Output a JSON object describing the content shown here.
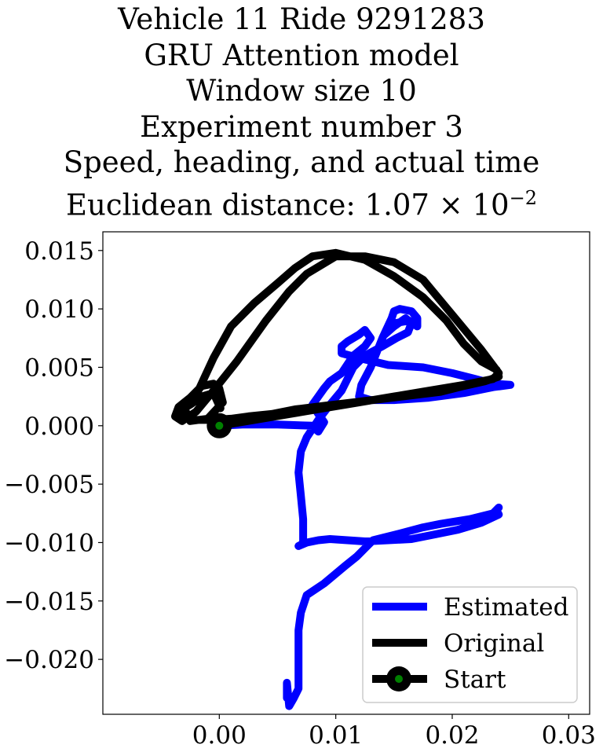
{
  "title_lines": [
    "Vehicle 11 Ride 9291283",
    "GRU Attention model",
    "Window size 10",
    "Experiment number 3",
    "Speed, heading, and actual time"
  ],
  "title_distance": {
    "prefix": "Euclidean distance: 1.07 × 10",
    "exponent": "−2"
  },
  "chart_data": {
    "type": "line",
    "title": "Vehicle 11 Ride 9291283 / GRU Attention model / Window size 10 / Experiment number 3 / Speed, heading, and actual time / Euclidean distance: 1.07 × 10^−2",
    "xlabel": "",
    "ylabel": "",
    "xlim": [
      -0.01,
      0.0318
    ],
    "ylim": [
      -0.0247,
      0.0166
    ],
    "x_ticks": [
      0.0,
      0.01,
      0.02,
      0.03
    ],
    "x_tick_labels": [
      "0.00",
      "0.01",
      "0.02",
      "0.03"
    ],
    "y_ticks": [
      0.015,
      0.01,
      0.005,
      0.0,
      -0.005,
      -0.01,
      -0.015,
      -0.02
    ],
    "y_tick_labels": [
      "0.015",
      "0.010",
      "0.005",
      "0.000",
      "−0.005",
      "−0.010",
      "−0.015",
      "−0.020"
    ],
    "grid": false,
    "legend_position": "lower right",
    "series": [
      {
        "name": "Estimated",
        "color": "#0000ff",
        "x": [
          0.0,
          0.002,
          0.005,
          0.008,
          0.0085,
          0.009,
          0.0085,
          0.008,
          0.0085,
          0.009,
          0.0095,
          0.0105,
          0.0115,
          0.0125,
          0.013,
          0.0125,
          0.012,
          0.011,
          0.0105,
          0.0105,
          0.012,
          0.0145,
          0.0175,
          0.02,
          0.022,
          0.0235,
          0.025,
          0.0235,
          0.021,
          0.018,
          0.015,
          0.013,
          0.012,
          0.0122,
          0.013,
          0.014,
          0.0148,
          0.015,
          0.0155,
          0.0165,
          0.017,
          0.017,
          0.0163,
          0.0152,
          0.0145,
          0.0142,
          0.015,
          0.016,
          0.0165,
          0.0162,
          0.0152,
          0.014,
          0.0125,
          0.0115,
          0.011,
          0.0105,
          0.0095,
          0.0085,
          0.0075,
          0.007,
          0.0068,
          0.007,
          0.0072,
          0.0072,
          0.007,
          0.0068,
          0.0075,
          0.0085,
          0.0095,
          0.011,
          0.0125,
          0.0145,
          0.0165,
          0.0185,
          0.0205,
          0.0225,
          0.024,
          0.0238,
          0.024,
          0.0235,
          0.0215,
          0.019,
          0.0175,
          0.0152,
          0.0132,
          0.0125,
          0.0118,
          0.0108,
          0.009,
          0.0075,
          0.007,
          0.0068,
          0.0068,
          0.0068,
          0.0068,
          0.0068,
          0.0064,
          0.006,
          0.0058,
          0.0058
        ],
        "y": [
          0.0,
          0.0001,
          0.0001,
          0.0,
          -0.0005,
          0.0003,
          0.001,
          0.0018,
          0.0025,
          0.0032,
          0.0038,
          0.0045,
          0.006,
          0.0068,
          0.0075,
          0.0082,
          0.0078,
          0.0072,
          0.0068,
          0.0062,
          0.0058,
          0.0052,
          0.005,
          0.0045,
          0.004,
          0.0036,
          0.0035,
          0.0033,
          0.0028,
          0.0024,
          0.0022,
          0.0022,
          0.0025,
          0.0035,
          0.005,
          0.0075,
          0.0092,
          0.0098,
          0.01,
          0.0098,
          0.0092,
          0.0085,
          0.009,
          0.0088,
          0.0082,
          0.0078,
          0.0085,
          0.0092,
          0.0088,
          0.008,
          0.0075,
          0.0068,
          0.006,
          0.005,
          0.004,
          0.003,
          0.0018,
          0.0005,
          -0.001,
          -0.0022,
          -0.004,
          -0.006,
          -0.008,
          -0.01,
          -0.0102,
          -0.0103,
          -0.01,
          -0.0098,
          -0.0097,
          -0.0098,
          -0.0099,
          -0.0098,
          -0.0097,
          -0.0093,
          -0.0089,
          -0.0083,
          -0.0076,
          -0.0072,
          -0.007,
          -0.0075,
          -0.008,
          -0.0084,
          -0.0087,
          -0.0093,
          -0.0098,
          -0.0105,
          -0.0112,
          -0.012,
          -0.0135,
          -0.0145,
          -0.016,
          -0.0175,
          -0.018,
          -0.0195,
          -0.021,
          -0.0225,
          -0.0233,
          -0.024,
          -0.022,
          -0.0233
        ]
      },
      {
        "name": "Original",
        "color": "#000000",
        "x": [
          0.0,
          0.003,
          0.006,
          0.009,
          0.012,
          0.015,
          0.018,
          0.021,
          0.0235,
          0.024,
          0.0225,
          0.02,
          0.0175,
          0.015,
          0.0125,
          0.01,
          0.0075,
          0.006,
          0.004,
          0.0015,
          -0.0005,
          -0.002,
          -0.0032,
          -0.0038,
          -0.0035,
          -0.0025,
          -0.0015,
          -0.0005,
          0.0,
          0.0003,
          -0.001,
          -0.0025,
          -0.003,
          -0.0018,
          -0.0005,
          0.001,
          0.003,
          0.005,
          0.0065,
          0.008,
          0.01,
          0.0125,
          0.015,
          0.0175,
          0.0195,
          0.021,
          0.0225,
          0.0238,
          0.024,
          0.0228,
          0.021,
          0.019,
          0.0165,
          0.014,
          0.0115,
          0.009,
          0.0065,
          0.0045,
          0.0025,
          0.001,
          -0.0005,
          -0.002,
          -0.0032,
          -0.0035,
          -0.0025,
          -0.0015,
          -0.0005,
          0.0001
        ],
        "y": [
          0.0,
          0.0005,
          0.001,
          0.0015,
          0.002,
          0.0025,
          0.003,
          0.0035,
          0.004,
          0.0045,
          0.0065,
          0.0095,
          0.0125,
          0.014,
          0.0145,
          0.0145,
          0.013,
          0.0115,
          0.009,
          0.0055,
          0.003,
          0.0012,
          0.0004,
          0.0008,
          0.0016,
          0.0024,
          0.0034,
          0.0036,
          0.0032,
          0.002,
          0.0006,
          0.0004,
          0.0015,
          0.003,
          0.0058,
          0.0085,
          0.0105,
          0.0122,
          0.0135,
          0.0145,
          0.0148,
          0.0142,
          0.0128,
          0.011,
          0.009,
          0.007,
          0.0055,
          0.0048,
          0.0042,
          0.0038,
          0.0034,
          0.0029,
          0.0026,
          0.0023,
          0.002,
          0.0017,
          0.0014,
          0.001,
          0.0008,
          0.0006,
          0.0005,
          0.0005,
          0.0007,
          0.0012,
          0.0018,
          0.0025,
          0.0028,
          0.0015
        ]
      }
    ],
    "start_marker": {
      "name": "Start",
      "x": 0.0,
      "y": 0.0,
      "outer_color": "#000000",
      "inner_color": "#008000"
    },
    "legend": [
      {
        "label": "Estimated",
        "color": "#0000ff",
        "style": "line"
      },
      {
        "label": "Original",
        "color": "#000000",
        "style": "line"
      },
      {
        "label": "Start",
        "color": "#000000",
        "marker_color": "#008000",
        "style": "line-marker"
      }
    ]
  }
}
